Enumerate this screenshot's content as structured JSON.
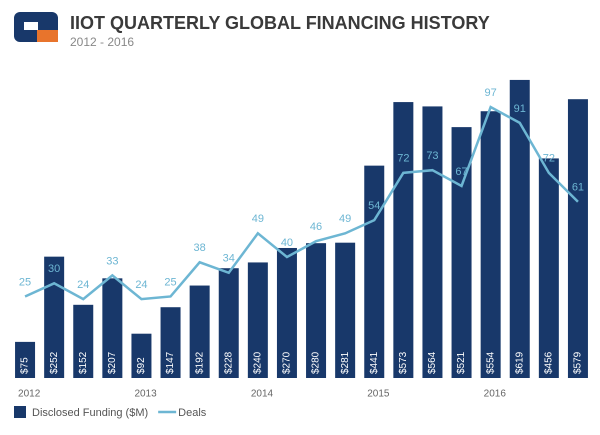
{
  "chart_data": {
    "type": "combo",
    "title": "IIOT QUARTERLY GLOBAL FINANCING HISTORY",
    "subtitle": "2012 - 2016",
    "categories": [
      "2012",
      null,
      null,
      null,
      "2013",
      null,
      null,
      null,
      "2014",
      null,
      null,
      null,
      "2015",
      null,
      null,
      null,
      "2016",
      null,
      null,
      null
    ],
    "series": [
      {
        "name": "Disclosed Funding ($M)",
        "type": "bar",
        "color": "#18386a",
        "values": [
          75,
          252,
          152,
          207,
          92,
          147,
          192,
          228,
          240,
          270,
          280,
          281,
          441,
          573,
          564,
          521,
          554,
          619,
          456,
          579
        ],
        "value_labels": [
          "$75",
          "$252",
          "$152",
          "$207",
          "$92",
          "$147",
          "$192",
          "$228",
          "$240",
          "$270",
          "$280",
          "$281",
          "$441",
          "$573",
          "$564",
          "$521",
          "$554",
          "$619",
          "$456",
          "$579"
        ]
      },
      {
        "name": "Deals",
        "type": "line",
        "color": "#6db6d3",
        "axis": "y2",
        "values": [
          25,
          30,
          24,
          33,
          24,
          25,
          38,
          34,
          49,
          40,
          46,
          49,
          54,
          72,
          73,
          67,
          97,
          91,
          72,
          61
        ]
      }
    ],
    "ylim": [
      0,
      650
    ],
    "y2lim": [
      -6,
      113
    ]
  }
}
